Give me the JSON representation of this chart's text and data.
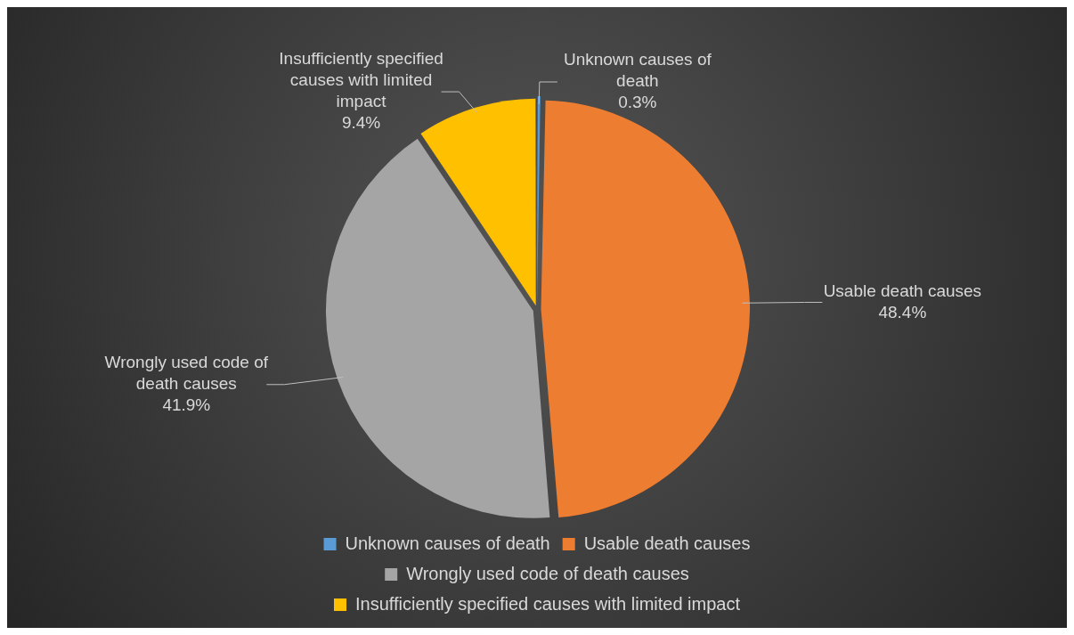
{
  "chart_data": {
    "type": "pie",
    "categories": [
      "Unknown causes of death",
      "Usable death causes",
      "Wrongly used code of death causes",
      "Insufficiently specified causes with limited impact"
    ],
    "values": [
      0.3,
      48.4,
      41.9,
      9.4
    ],
    "colors": [
      "#5b9bd5",
      "#ed7d31",
      "#a5a5a5",
      "#ffc000"
    ],
    "value_labels": [
      "0.3%",
      "48.4%",
      "41.9%",
      "9.4%"
    ],
    "legend": "bottom"
  }
}
